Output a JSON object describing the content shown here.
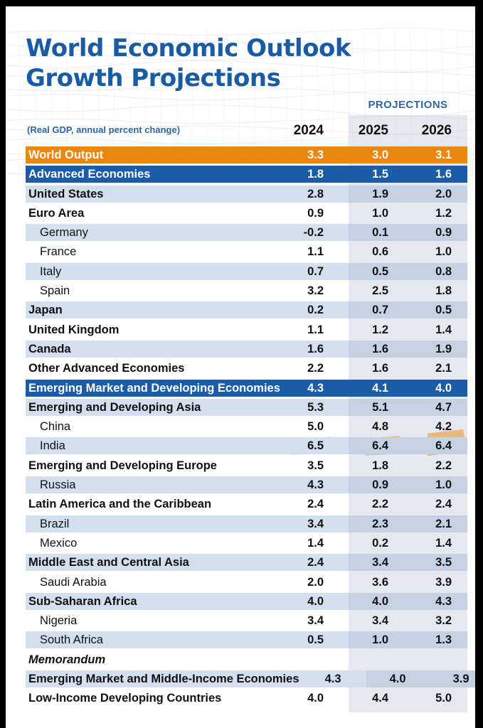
{
  "header": {
    "title_line1": "World Economic Outlook",
    "title_line2": "Growth Projections",
    "projections_label": "PROJECTIONS",
    "caption": "(Real GDP, annual percent change)"
  },
  "colors": {
    "title_blue": "#1A5BA5",
    "world_output_orange": "#EA870E",
    "group_blue": "#1B5CA9",
    "row_shaded": "#D3DFEE",
    "row_shaded_in_band": "#C5D2E4",
    "projections_band": "#E6EAF1",
    "highlight_tan": "#EAB471",
    "text_black": "#111111"
  },
  "chart_data": {
    "type": "table",
    "title": "World Economic Outlook Growth Projections",
    "subtitle": "(Real GDP, annual percent change)",
    "columns": [
      "2024",
      "2025",
      "2026"
    ],
    "column_group_label": "PROJECTIONS",
    "column_group_span": [
      "2025",
      "2026"
    ],
    "rows": [
      {
        "label": "World Output",
        "style": "orange",
        "indent": false,
        "bold": true,
        "italic": false,
        "highlighted": false,
        "values": [
          "3.3",
          "3.0",
          "3.1"
        ]
      },
      {
        "label": "Advanced Economies",
        "style": "blue",
        "indent": false,
        "bold": true,
        "italic": false,
        "highlighted": false,
        "values": [
          "1.8",
          "1.5",
          "1.6"
        ]
      },
      {
        "label": "United States",
        "style": "shaded",
        "indent": false,
        "bold": true,
        "italic": false,
        "highlighted": false,
        "values": [
          "2.8",
          "1.9",
          "2.0"
        ]
      },
      {
        "label": "Euro Area",
        "style": "white",
        "indent": false,
        "bold": true,
        "italic": false,
        "highlighted": false,
        "values": [
          "0.9",
          "1.0",
          "1.2"
        ]
      },
      {
        "label": "Germany",
        "style": "shaded",
        "indent": true,
        "bold": false,
        "italic": false,
        "highlighted": false,
        "values": [
          "-0.2",
          "0.1",
          "0.9"
        ]
      },
      {
        "label": "France",
        "style": "white",
        "indent": true,
        "bold": false,
        "italic": false,
        "highlighted": false,
        "values": [
          "1.1",
          "0.6",
          "1.0"
        ]
      },
      {
        "label": "Italy",
        "style": "shaded",
        "indent": true,
        "bold": false,
        "italic": false,
        "highlighted": false,
        "values": [
          "0.7",
          "0.5",
          "0.8"
        ]
      },
      {
        "label": "Spain",
        "style": "white",
        "indent": true,
        "bold": false,
        "italic": false,
        "highlighted": false,
        "values": [
          "3.2",
          "2.5",
          "1.8"
        ]
      },
      {
        "label": "Japan",
        "style": "shaded",
        "indent": false,
        "bold": true,
        "italic": false,
        "highlighted": false,
        "values": [
          "0.2",
          "0.7",
          "0.5"
        ]
      },
      {
        "label": "United Kingdom",
        "style": "white",
        "indent": false,
        "bold": true,
        "italic": false,
        "highlighted": false,
        "values": [
          "1.1",
          "1.2",
          "1.4"
        ]
      },
      {
        "label": "Canada",
        "style": "shaded",
        "indent": false,
        "bold": true,
        "italic": false,
        "highlighted": false,
        "values": [
          "1.6",
          "1.6",
          "1.9"
        ]
      },
      {
        "label": "Other Advanced Economies",
        "style": "white",
        "indent": false,
        "bold": true,
        "italic": false,
        "highlighted": false,
        "values": [
          "2.2",
          "1.6",
          "2.1"
        ]
      },
      {
        "label": "Emerging Market and Developing Economies",
        "style": "blue",
        "indent": false,
        "bold": true,
        "italic": false,
        "highlighted": false,
        "values": [
          "4.3",
          "4.1",
          "4.0"
        ]
      },
      {
        "label": "Emerging and Developing Asia",
        "style": "shaded",
        "indent": false,
        "bold": true,
        "italic": false,
        "highlighted": false,
        "values": [
          "5.3",
          "5.1",
          "4.7"
        ]
      },
      {
        "label": "China",
        "style": "white",
        "indent": true,
        "bold": false,
        "italic": false,
        "highlighted": false,
        "values": [
          "5.0",
          "4.8",
          "4.2"
        ]
      },
      {
        "label": "India",
        "style": "shaded",
        "indent": true,
        "bold": false,
        "italic": false,
        "highlighted": true,
        "values": [
          "6.5",
          "6.4",
          "6.4"
        ]
      },
      {
        "label": "Emerging and Developing Europe",
        "style": "white",
        "indent": false,
        "bold": true,
        "italic": false,
        "highlighted": false,
        "values": [
          "3.5",
          "1.8",
          "2.2"
        ]
      },
      {
        "label": "Russia",
        "style": "shaded",
        "indent": true,
        "bold": false,
        "italic": false,
        "highlighted": false,
        "values": [
          "4.3",
          "0.9",
          "1.0"
        ]
      },
      {
        "label": "Latin America and the Caribbean",
        "style": "white",
        "indent": false,
        "bold": true,
        "italic": false,
        "highlighted": false,
        "values": [
          "2.4",
          "2.2",
          "2.4"
        ]
      },
      {
        "label": "Brazil",
        "style": "shaded",
        "indent": true,
        "bold": false,
        "italic": false,
        "highlighted": false,
        "values": [
          "3.4",
          "2.3",
          "2.1"
        ]
      },
      {
        "label": "Mexico",
        "style": "white",
        "indent": true,
        "bold": false,
        "italic": false,
        "highlighted": false,
        "values": [
          "1.4",
          "0.2",
          "1.4"
        ]
      },
      {
        "label": "Middle East and Central Asia",
        "style": "shaded",
        "indent": false,
        "bold": true,
        "italic": false,
        "highlighted": false,
        "values": [
          "2.4",
          "3.4",
          "3.5"
        ]
      },
      {
        "label": "Saudi Arabia",
        "style": "white",
        "indent": true,
        "bold": false,
        "italic": false,
        "highlighted": false,
        "values": [
          "2.0",
          "3.6",
          "3.9"
        ]
      },
      {
        "label": "Sub-Saharan Africa",
        "style": "shaded",
        "indent": false,
        "bold": true,
        "italic": false,
        "highlighted": false,
        "values": [
          "4.0",
          "4.0",
          "4.3"
        ]
      },
      {
        "label": "Nigeria",
        "style": "white",
        "indent": true,
        "bold": false,
        "italic": false,
        "highlighted": false,
        "values": [
          "3.4",
          "3.4",
          "3.2"
        ]
      },
      {
        "label": "South Africa",
        "style": "shaded",
        "indent": true,
        "bold": false,
        "italic": false,
        "highlighted": false,
        "values": [
          "0.5",
          "1.0",
          "1.3"
        ]
      },
      {
        "label": "Memorandum",
        "style": "white",
        "indent": false,
        "bold": true,
        "italic": true,
        "highlighted": false,
        "values": [
          "",
          "",
          ""
        ]
      },
      {
        "label": "Emerging Market and Middle-Income Economies",
        "style": "shaded",
        "indent": false,
        "bold": true,
        "italic": false,
        "highlighted": false,
        "values": [
          "4.3",
          "4.0",
          "3.9"
        ]
      },
      {
        "label": "Low-Income Developing Countries",
        "style": "white",
        "indent": false,
        "bold": true,
        "italic": false,
        "highlighted": false,
        "values": [
          "4.0",
          "4.4",
          "5.0"
        ]
      }
    ]
  }
}
